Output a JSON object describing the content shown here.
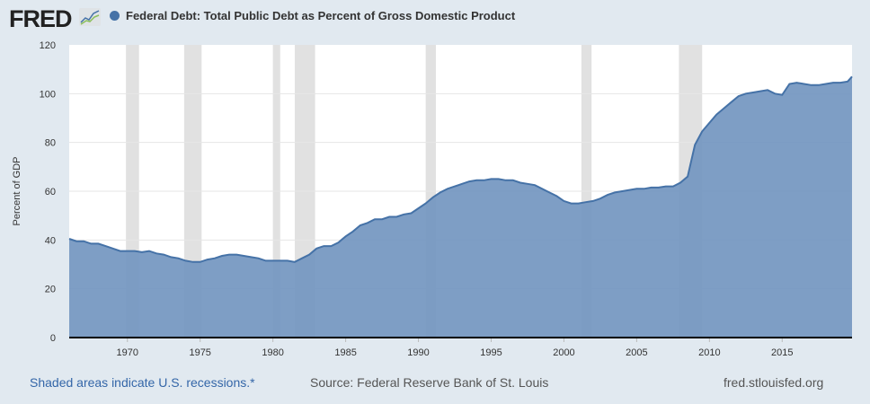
{
  "header": {
    "logo": "FRED",
    "legend_label": "Federal Debt: Total Public Debt as Percent of Gross Domestic Product"
  },
  "footer": {
    "recessions_note": "Shaded areas indicate U.S. recessions.*",
    "source": "Source: Federal Reserve Bank of St. Louis",
    "site": "fred.stlouisfed.org"
  },
  "colors": {
    "series_line": "#4572a7",
    "series_fill": "#7396c0",
    "recession": "#e1e1e1",
    "background": "#e1e9f0"
  },
  "chart_data": {
    "type": "area",
    "title": "Federal Debt: Total Public Debt as Percent of Gross Domestic Product",
    "xlabel": "",
    "ylabel": "Percent of GDP",
    "xlim": [
      1966.0,
      2019.8
    ],
    "ylim": [
      0,
      120
    ],
    "yticks": [
      0,
      20,
      40,
      60,
      80,
      100,
      120
    ],
    "xticks": [
      1970,
      1975,
      1980,
      1985,
      1990,
      1995,
      2000,
      2005,
      2010,
      2015
    ],
    "grid": true,
    "recessions": [
      [
        1969.9,
        1970.8
      ],
      [
        1973.9,
        1975.1
      ],
      [
        1980.0,
        1980.5
      ],
      [
        1981.5,
        1982.9
      ],
      [
        1990.5,
        1991.2
      ],
      [
        2001.2,
        2001.9
      ],
      [
        2007.9,
        2009.5
      ]
    ],
    "series": [
      {
        "name": "Federal Debt: Total Public Debt as Percent of Gross Domestic Product",
        "x": [
          1966,
          1966.5,
          1967,
          1967.5,
          1968,
          1968.5,
          1969,
          1969.5,
          1970,
          1970.5,
          1971,
          1971.5,
          1972,
          1972.5,
          1973,
          1973.5,
          1974,
          1974.5,
          1975,
          1975.5,
          1976,
          1976.5,
          1977,
          1977.5,
          1978,
          1978.5,
          1979,
          1979.5,
          1980,
          1980.5,
          1981,
          1981.5,
          1982,
          1982.5,
          1983,
          1983.5,
          1984,
          1984.5,
          1985,
          1985.5,
          1986,
          1986.5,
          1987,
          1987.5,
          1988,
          1988.5,
          1989,
          1989.5,
          1990,
          1990.5,
          1991,
          1991.5,
          1992,
          1992.5,
          1993,
          1993.5,
          1994,
          1994.5,
          1995,
          1995.5,
          1996,
          1996.5,
          1997,
          1997.5,
          1998,
          1998.5,
          1999,
          1999.5,
          2000,
          2000.5,
          2001,
          2001.5,
          2002,
          2002.5,
          2003,
          2003.5,
          2004,
          2004.5,
          2005,
          2005.5,
          2006,
          2006.5,
          2007,
          2007.5,
          2008,
          2008.5,
          2009,
          2009.5,
          2010,
          2010.5,
          2011,
          2011.5,
          2012,
          2012.5,
          2013,
          2013.5,
          2014,
          2014.5,
          2015,
          2015.5,
          2016,
          2016.5,
          2017,
          2017.5,
          2018,
          2018.5,
          2019,
          2019.5,
          2019.8
        ],
        "values": [
          40.5,
          39.5,
          39.5,
          38.5,
          38.5,
          37.5,
          36.5,
          35.5,
          35.5,
          35.5,
          35,
          35.5,
          34.5,
          34,
          33,
          32.5,
          31.5,
          31,
          31,
          32,
          32.5,
          33.5,
          34,
          34,
          33.5,
          33,
          32.5,
          31.5,
          31.5,
          31.5,
          31.5,
          31,
          32.5,
          34,
          36.5,
          37.5,
          37.5,
          39,
          41.5,
          43.5,
          46,
          47,
          48.5,
          48.5,
          49.5,
          49.5,
          50.5,
          51,
          53,
          55,
          57.5,
          59.5,
          61,
          62,
          63,
          64,
          64.5,
          64.5,
          65,
          65,
          64.5,
          64.5,
          63.5,
          63,
          62.5,
          61,
          59.5,
          58,
          56,
          55,
          55,
          55.5,
          56,
          57,
          58.5,
          59.5,
          60,
          60.5,
          61,
          61,
          61.5,
          61.5,
          62,
          62,
          63.5,
          66,
          79,
          84.5,
          88,
          91.5,
          94,
          96.5,
          99,
          100,
          100.5,
          101,
          101.5,
          100,
          99.5,
          104,
          104.5,
          104,
          103.5,
          103.5,
          104,
          104.5,
          104.5,
          105,
          107
        ]
      }
    ]
  }
}
